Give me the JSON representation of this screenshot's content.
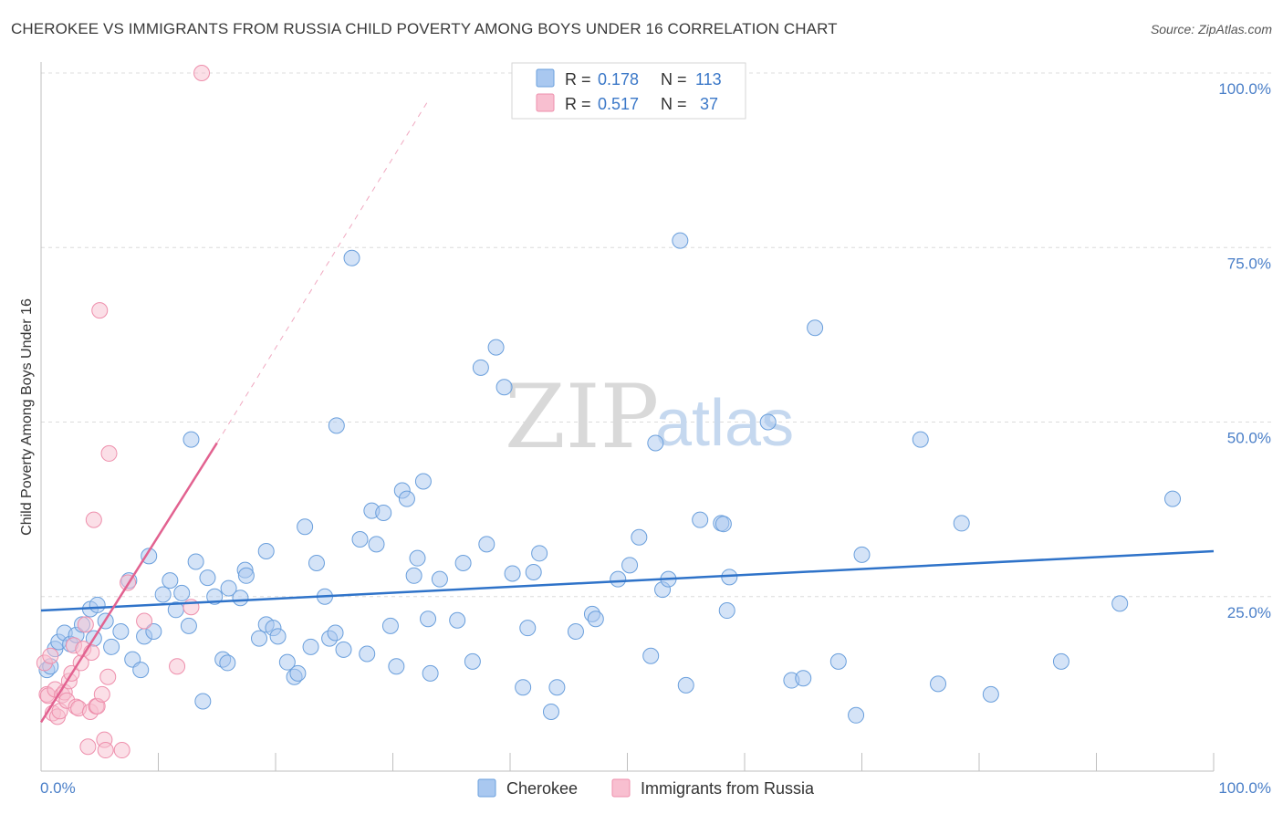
{
  "header": {
    "title": "CHEROKEE VS IMMIGRANTS FROM RUSSIA CHILD POVERTY AMONG BOYS UNDER 16 CORRELATION CHART",
    "source": "Source: ZipAtlas.com"
  },
  "legend": {
    "r_label": "R =",
    "n_label": "N =",
    "series1": {
      "r": "0.178",
      "n": "113"
    },
    "series2": {
      "r": "0.517",
      "n": "37"
    }
  },
  "watermark": {
    "zip": "ZIP",
    "atlas": "atlas"
  },
  "colors": {
    "cherokee_fill": "#a9c8f0",
    "cherokee_stroke": "#6a9fdc",
    "cherokee_line": "#2f73c9",
    "russia_fill": "#f8bfd0",
    "russia_stroke": "#ee8fac",
    "russia_line": "#e26290",
    "grid": "#dcdcdc",
    "tick_text": "#4a7fc8"
  },
  "chart_data": {
    "type": "scatter",
    "title": "CHEROKEE VS IMMIGRANTS FROM RUSSIA CHILD POVERTY AMONG BOYS UNDER 16 CORRELATION CHART",
    "xlabel": "",
    "ylabel": "Child Poverty Among Boys Under 16",
    "xlim": [
      0,
      100
    ],
    "ylim": [
      0,
      100
    ],
    "x_tick_labels": {
      "left": "0.0%",
      "right": "100.0%"
    },
    "y_tick_labels": [
      {
        "value": 100,
        "label": "100.0%"
      },
      {
        "value": 75,
        "label": "75.0%"
      },
      {
        "value": 50,
        "label": "50.0%"
      },
      {
        "value": 25,
        "label": "25.0%"
      }
    ],
    "grid": true,
    "legend_placement": "top-center",
    "series": [
      {
        "name": "Cherokee",
        "r": 0.178,
        "n": 113,
        "trend": {
          "x": [
            0,
            100
          ],
          "y": [
            23.0,
            31.5
          ],
          "dashed_extension": false
        },
        "points": [
          [
            0.5,
            14.5
          ],
          [
            0.8,
            15
          ],
          [
            1.2,
            17.5
          ],
          [
            1.5,
            18.5
          ],
          [
            2.0,
            19.8
          ],
          [
            2.5,
            18.2
          ],
          [
            3.0,
            19.5
          ],
          [
            3.5,
            21.0
          ],
          [
            4.2,
            23.2
          ],
          [
            4.8,
            23.8
          ],
          [
            4.5,
            19.0
          ],
          [
            5.5,
            21.5
          ],
          [
            6.0,
            17.8
          ],
          [
            6.8,
            20.0
          ],
          [
            7.5,
            27.3
          ],
          [
            7.8,
            16.0
          ],
          [
            8.5,
            14.5
          ],
          [
            8.8,
            19.3
          ],
          [
            9.6,
            20.0
          ],
          [
            9.2,
            30.8
          ],
          [
            10.4,
            25.3
          ],
          [
            11.0,
            27.3
          ],
          [
            11.5,
            23.1
          ],
          [
            12.0,
            25.5
          ],
          [
            12.6,
            20.8
          ],
          [
            12.8,
            47.5
          ],
          [
            13.2,
            30.0
          ],
          [
            13.8,
            10.0
          ],
          [
            14.2,
            27.7
          ],
          [
            14.8,
            25.0
          ],
          [
            15.5,
            16.0
          ],
          [
            15.9,
            15.5
          ],
          [
            16.0,
            26.2
          ],
          [
            17.0,
            24.8
          ],
          [
            17.4,
            28.8
          ],
          [
            17.5,
            28.0
          ],
          [
            18.6,
            19.0
          ],
          [
            19.2,
            21.0
          ],
          [
            19.2,
            31.5
          ],
          [
            19.8,
            20.5
          ],
          [
            20.2,
            19.3
          ],
          [
            21.0,
            15.6
          ],
          [
            21.6,
            13.5
          ],
          [
            21.9,
            14.0
          ],
          [
            22.5,
            35.0
          ],
          [
            23.0,
            17.8
          ],
          [
            23.5,
            29.8
          ],
          [
            24.2,
            25.0
          ],
          [
            24.6,
            19.0
          ],
          [
            25.1,
            19.8
          ],
          [
            25.2,
            49.5
          ],
          [
            25.8,
            17.4
          ],
          [
            26.5,
            73.5
          ],
          [
            27.2,
            33.2
          ],
          [
            27.8,
            16.8
          ],
          [
            28.2,
            37.3
          ],
          [
            28.6,
            32.5
          ],
          [
            29.2,
            37.0
          ],
          [
            29.8,
            20.8
          ],
          [
            30.3,
            15.0
          ],
          [
            30.8,
            40.2
          ],
          [
            31.2,
            39.0
          ],
          [
            31.8,
            28.0
          ],
          [
            32.1,
            30.5
          ],
          [
            32.6,
            41.5
          ],
          [
            33.0,
            21.8
          ],
          [
            33.2,
            14.0
          ],
          [
            34.0,
            27.5
          ],
          [
            35.5,
            21.6
          ],
          [
            36.0,
            29.8
          ],
          [
            36.8,
            15.7
          ],
          [
            37.5,
            57.8
          ],
          [
            38.0,
            32.5
          ],
          [
            38.8,
            60.7
          ],
          [
            39.5,
            55.0
          ],
          [
            40.2,
            28.3
          ],
          [
            41.1,
            12.0
          ],
          [
            41.5,
            20.5
          ],
          [
            42.0,
            28.5
          ],
          [
            42.5,
            31.2
          ],
          [
            43.5,
            8.5
          ],
          [
            44.0,
            12.0
          ],
          [
            45.6,
            20.0
          ],
          [
            47.0,
            22.5
          ],
          [
            47.3,
            21.8
          ],
          [
            49.2,
            27.5
          ],
          [
            50.2,
            29.5
          ],
          [
            51.0,
            33.5
          ],
          [
            52.0,
            16.5
          ],
          [
            52.4,
            47.0
          ],
          [
            53.0,
            26.0
          ],
          [
            53.5,
            27.5
          ],
          [
            54.5,
            76.0
          ],
          [
            55.0,
            12.3
          ],
          [
            56.2,
            36.0
          ],
          [
            58.0,
            35.5
          ],
          [
            58.5,
            23.0
          ],
          [
            58.2,
            35.4
          ],
          [
            58.7,
            27.8
          ],
          [
            62.0,
            50.0
          ],
          [
            64.0,
            13.0
          ],
          [
            65.0,
            13.3
          ],
          [
            66.0,
            63.5
          ],
          [
            68.0,
            15.7
          ],
          [
            69.5,
            8.0
          ],
          [
            70.0,
            31.0
          ],
          [
            75.0,
            47.5
          ],
          [
            76.5,
            12.5
          ],
          [
            78.5,
            35.5
          ],
          [
            81.0,
            11.0
          ],
          [
            87.0,
            15.7
          ],
          [
            92.0,
            24.0
          ],
          [
            96.5,
            39.0
          ]
        ]
      },
      {
        "name": "Immigrants from Russia",
        "r": 0.517,
        "n": 37,
        "trend": {
          "x": [
            0,
            15
          ],
          "y": [
            7.0,
            47.0
          ],
          "dashed_extension": {
            "x": [
              15,
              33
            ],
            "y": [
              47.0,
              96.0
            ]
          }
        },
        "points": [
          [
            0.3,
            15.5
          ],
          [
            0.5,
            11.0
          ],
          [
            0.6,
            10.8
          ],
          [
            0.8,
            16.5
          ],
          [
            1.0,
            8.3
          ],
          [
            1.2,
            11.7
          ],
          [
            1.4,
            7.8
          ],
          [
            1.6,
            8.6
          ],
          [
            1.8,
            10.9
          ],
          [
            2.0,
            11.3
          ],
          [
            2.2,
            10.1
          ],
          [
            2.4,
            12.9
          ],
          [
            2.6,
            14.0
          ],
          [
            2.8,
            18.0
          ],
          [
            3.0,
            9.2
          ],
          [
            3.2,
            9.0
          ],
          [
            3.4,
            15.5
          ],
          [
            3.6,
            17.5
          ],
          [
            3.8,
            21.0
          ],
          [
            4.0,
            3.5
          ],
          [
            4.2,
            8.5
          ],
          [
            4.3,
            17.0
          ],
          [
            4.5,
            36.0
          ],
          [
            4.7,
            9.3
          ],
          [
            4.8,
            9.3
          ],
          [
            5.0,
            66.0
          ],
          [
            5.2,
            11.0
          ],
          [
            5.4,
            4.5
          ],
          [
            5.5,
            3.0
          ],
          [
            5.7,
            13.5
          ],
          [
            5.8,
            45.5
          ],
          [
            6.9,
            3.0
          ],
          [
            7.4,
            27.0
          ],
          [
            8.8,
            21.5
          ],
          [
            11.6,
            15.0
          ],
          [
            12.8,
            23.5
          ],
          [
            13.7,
            100.0
          ]
        ]
      }
    ]
  }
}
